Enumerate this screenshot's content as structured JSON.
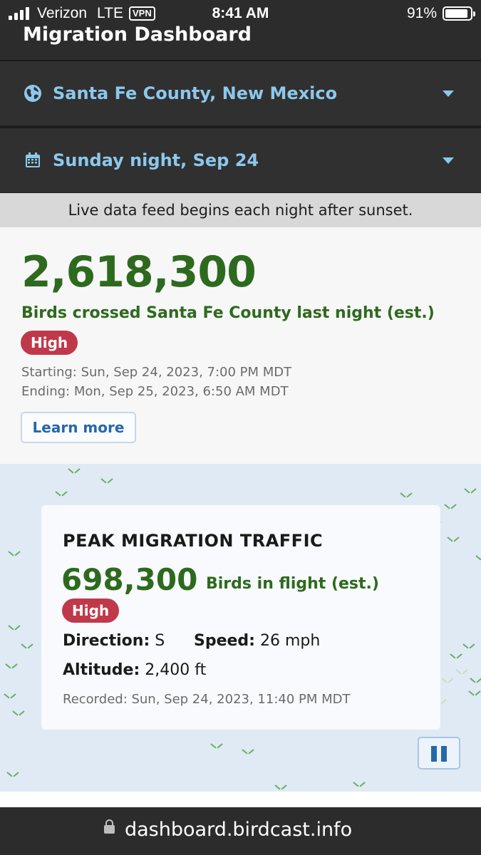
{
  "status_bar": {
    "carrier": "Verizon",
    "network": "LTE",
    "vpn": "VPN",
    "time": "8:41 AM",
    "battery": "91%",
    "battery_level": 0.91
  },
  "header": {
    "title": "Migration Dashboard"
  },
  "selectors": {
    "location": {
      "icon": "globe-icon",
      "label": "Santa Fe County, New Mexico"
    },
    "date": {
      "icon": "calendar-icon",
      "label": "Sunday night, Sep 24"
    }
  },
  "notice": "Live data feed begins each night after sunset.",
  "summary": {
    "count": "2,618,300",
    "caption": "Birds crossed Santa Fe County last night (est.)",
    "badge": "High",
    "starting": "Starting: Sun, Sep 24, 2023, 7:00 PM MDT",
    "ending": "Ending: Mon, Sep 25, 2023, 6:50 AM MDT",
    "learn_more": "Learn more"
  },
  "peak": {
    "title": "PEAK MIGRATION TRAFFIC",
    "count": "698,300",
    "unit": "Birds in flight (est.)",
    "badge": "High",
    "direction_label": "Direction:",
    "direction_value": "S",
    "speed_label": "Speed:",
    "speed_value": "26 mph",
    "altitude_label": "Altitude:",
    "altitude_value": "2,400 ft",
    "recorded": "Recorded: Sun, Sep 24, 2023, 11:40 PM MDT"
  },
  "url_bar": {
    "url": "dashboard.birdcast.info"
  },
  "colors": {
    "accent_green": "#2e6a1e",
    "badge_red": "#c0394a",
    "link_blue": "#2668a6",
    "selector_blue": "#8cc8ec"
  }
}
